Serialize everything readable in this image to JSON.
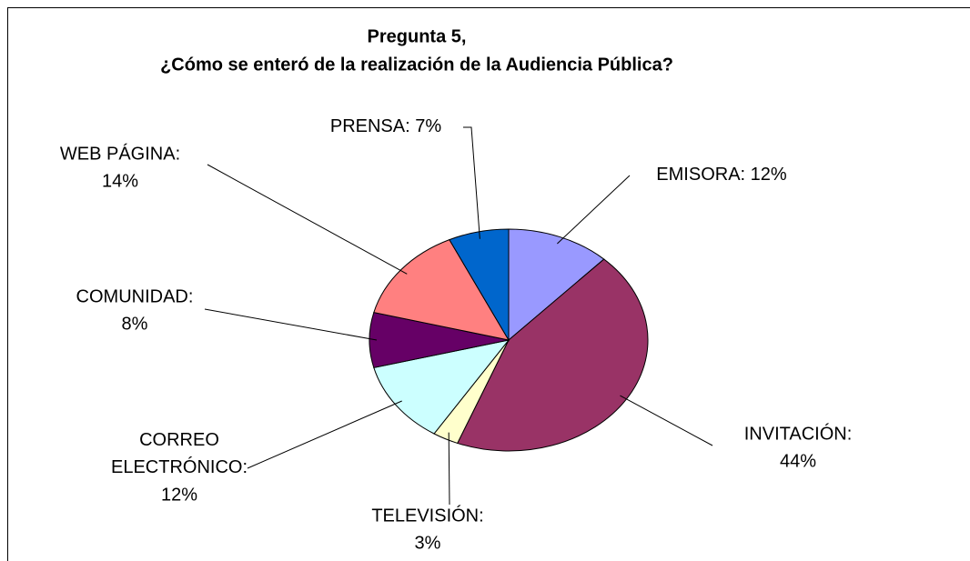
{
  "chart_data": {
    "type": "pie",
    "title": "Pregunta 5,",
    "subtitle": "¿Cómo se enteró de la realización de la Audiencia Pública?",
    "categories": [
      "EMISORA:",
      "INVITACIÓN:",
      "TELEVISIÓN:",
      "CORREO ELECTRÓNICO:",
      "COMUNIDAD:",
      "WEB PÁGINA:",
      "PRENSA:"
    ],
    "values": [
      12,
      44,
      3,
      12,
      8,
      14,
      7
    ],
    "value_labels": [
      "12%",
      "44%",
      "3%",
      "12%",
      "8%",
      "14%",
      "7%"
    ],
    "colors": [
      "#9999ff",
      "#993366",
      "#ffffcc",
      "#ccffff",
      "#660066",
      "#ff8080",
      "#0066cc"
    ]
  }
}
